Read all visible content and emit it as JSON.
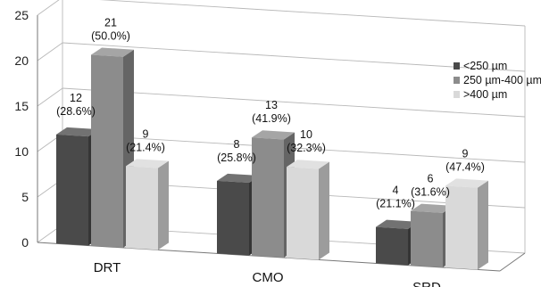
{
  "chart_data": {
    "type": "bar",
    "title": "",
    "xlabel": "",
    "ylabel": "",
    "ylim": [
      0,
      25
    ],
    "yticks": [
      0,
      5,
      10,
      15,
      20,
      25
    ],
    "grid": true,
    "legend_position": "right",
    "categories": [
      "DRT",
      "CMO",
      "SRD"
    ],
    "series": [
      {
        "name": "<250 µm",
        "color": "#4a4a4a",
        "values": [
          12,
          8,
          4
        ],
        "value_labels": [
          "12",
          "8",
          "4"
        ],
        "percent_labels": [
          "(28.6%)",
          "(25.8%)",
          "(21.1%)"
        ]
      },
      {
        "name": "250 µm-400 µm",
        "color": "#8c8c8c",
        "values": [
          21,
          13,
          6
        ],
        "value_labels": [
          "21",
          "13",
          "6"
        ],
        "percent_labels": [
          "(50.0%)",
          "(41.9%)",
          "(31.6%)"
        ]
      },
      {
        "name": ">400 µm",
        "color": "#d9d9d9",
        "values": [
          9,
          10,
          9
        ],
        "value_labels": [
          "9",
          "10",
          "9"
        ],
        "percent_labels": [
          "(21.4%)",
          "(32.3%)",
          "(47.4%)"
        ]
      }
    ]
  }
}
